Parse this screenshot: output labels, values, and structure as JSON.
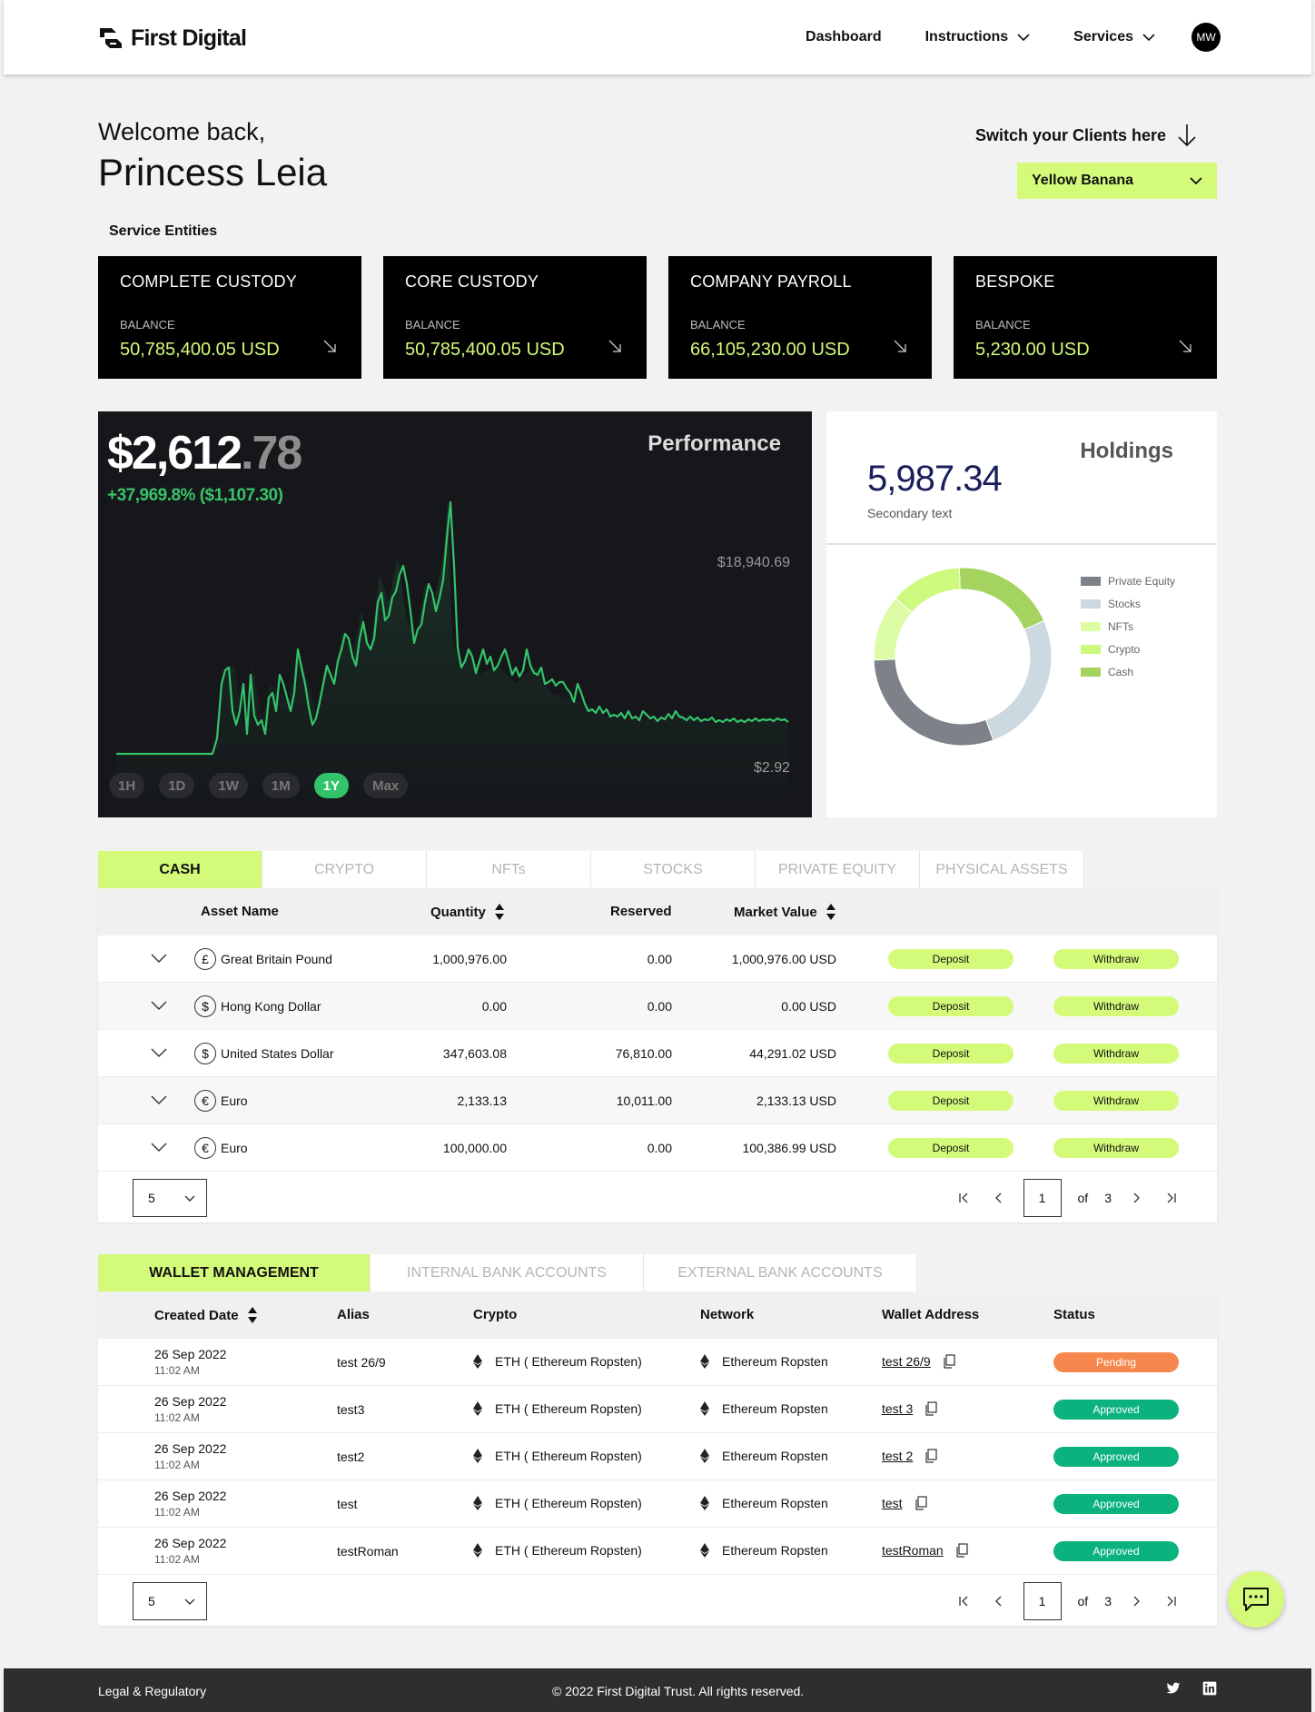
{
  "header": {
    "brand": "First Digital",
    "nav": [
      {
        "label": "Dashboard",
        "dropdown": false
      },
      {
        "label": "Instructions",
        "dropdown": true
      },
      {
        "label": "Services",
        "dropdown": true
      }
    ],
    "avatar_initials": "MW"
  },
  "welcome": {
    "greeting": "Welcome back,",
    "name": "Princess Leia",
    "switch_label": "Switch your Clients here",
    "client_selected": "Yellow Banana"
  },
  "service_entities": {
    "label": "Service Entities",
    "balance_label": "BALANCE",
    "items": [
      {
        "name": "COMPLETE CUSTODY",
        "balance": "50,785,400.05 USD"
      },
      {
        "name": "CORE CUSTODY",
        "balance": "50,785,400.05 USD"
      },
      {
        "name": "COMPANY PAYROLL",
        "balance": "66,105,230.00 USD"
      },
      {
        "name": "BESPOKE",
        "balance": "5,230.00 USD"
      }
    ]
  },
  "performance": {
    "title": "Performance",
    "price_main": "$2,612",
    "price_cents": ".78",
    "change": "+37,969.8% ($1,107.30)",
    "high_label": "$18,940.69",
    "low_label": "$2.92",
    "ranges": [
      "1H",
      "1D",
      "1W",
      "1M",
      "1Y",
      "Max"
    ],
    "active_range": "1Y",
    "line_color": "#33c36a"
  },
  "holdings": {
    "title": "Holdings",
    "value": "5,987.34",
    "secondary": "Secondary text"
  },
  "chart_data": {
    "type": "pie",
    "donut": true,
    "categories": [
      "Private Equity",
      "Stocks",
      "NFTs",
      "Crypto",
      "Cash"
    ],
    "values": [
      30,
      26,
      12,
      13,
      19
    ],
    "colors": [
      "#7d8288",
      "#cdd9e0",
      "#dcfca6",
      "#cdf97e",
      "#a4d360"
    ],
    "legend": "right"
  },
  "asset_tabs": [
    "CASH",
    "CRYPTO",
    "NFTs",
    "STOCKS",
    "PRIVATE EQUITY",
    "PHYSICAL ASSETS"
  ],
  "asset_table": {
    "headers": {
      "name": "Asset Name",
      "quantity": "Quantity",
      "reserved": "Reserved",
      "market": "Market Value"
    },
    "deposit_label": "Deposit",
    "withdraw_label": "Withdraw",
    "rows": [
      {
        "icon": "£",
        "name": "Great Britain Pound",
        "quantity": "1,000,976.00",
        "reserved": "0.00",
        "market": "1,000,976.00 USD"
      },
      {
        "icon": "$",
        "name": "Hong Kong Dollar",
        "quantity": "0.00",
        "reserved": "0.00",
        "market": "0.00 USD"
      },
      {
        "icon": "$",
        "name": "United States Dollar",
        "quantity": "347,603.08",
        "reserved": "76,810.00",
        "market": "44,291.02 USD"
      },
      {
        "icon": "€",
        "name": "Euro",
        "quantity": "2,133.13",
        "reserved": "10,011.00",
        "market": "2,133.13 USD"
      },
      {
        "icon": "€",
        "name": "Euro",
        "quantity": "100,000.00",
        "reserved": "0.00",
        "market": "100,386.99 USD"
      }
    ],
    "per_page": "5",
    "page": "1",
    "of_label": "of",
    "total_pages": "3"
  },
  "wallet_tabs": [
    "WALLET MANAGEMENT",
    "INTERNAL BANK ACCOUNTS",
    "EXTERNAL BANK ACCOUNTS"
  ],
  "wallet_table": {
    "headers": {
      "date": "Created Date",
      "alias": "Alias",
      "crypto": "Crypto",
      "network": "Network",
      "address": "Wallet Address",
      "status": "Status"
    },
    "rows": [
      {
        "date": "26 Sep 2022",
        "time": "11:02 AM",
        "alias": "test 26/9",
        "crypto": "ETH ( Ethereum Ropsten)",
        "network": "Ethereum Ropsten",
        "address": "test 26/9",
        "status": "Pending",
        "status_color": "#f7884d"
      },
      {
        "date": "26 Sep 2022",
        "time": "11:02 AM",
        "alias": "test3",
        "crypto": "ETH ( Ethereum Ropsten)",
        "network": "Ethereum Ropsten",
        "address": "test 3",
        "status": "Approved",
        "status_color": "#0cb27e"
      },
      {
        "date": "26 Sep 2022",
        "time": "11:02 AM",
        "alias": "test2",
        "crypto": "ETH ( Ethereum Ropsten)",
        "network": "Ethereum Ropsten",
        "address": "test 2",
        "status": "Approved",
        "status_color": "#0cb27e"
      },
      {
        "date": "26 Sep 2022",
        "time": "11:02 AM",
        "alias": "test",
        "crypto": "ETH ( Ethereum Ropsten)",
        "network": "Ethereum Ropsten",
        "address": "test",
        "status": "Approved",
        "status_color": "#0cb27e"
      },
      {
        "date": "26 Sep 2022",
        "time": "11:02 AM",
        "alias": "testRoman",
        "crypto": "ETH ( Ethereum Ropsten)",
        "network": "Ethereum Ropsten",
        "address": "testRoman",
        "status": "Approved",
        "status_color": "#0cb27e"
      }
    ],
    "per_page": "5",
    "page": "1",
    "of_label": "of",
    "total_pages": "3"
  },
  "footer": {
    "legal": "Legal & Regulatory",
    "copyright": "© 2022 First Digital Trust. All rights reserved."
  },
  "colors": {
    "accent": "#d4fa7a",
    "pending": "#f7884d",
    "approved": "#0cb27e"
  }
}
